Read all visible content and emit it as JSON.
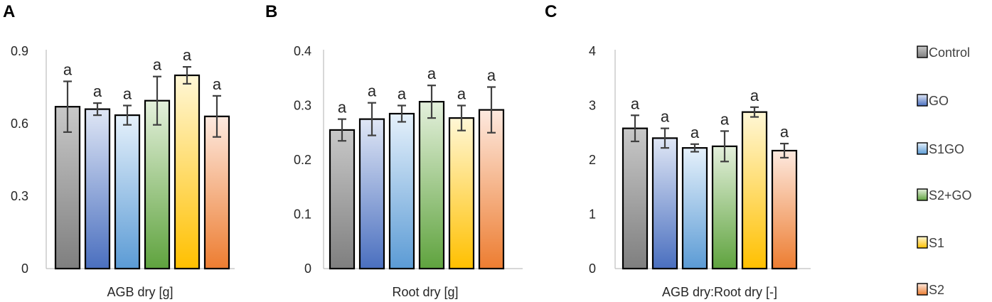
{
  "legend": [
    {
      "name": "Control",
      "top": "#c8c8c8",
      "bottom": "#7f7f7f"
    },
    {
      "name": "GO",
      "top": "#dfe6f5",
      "bottom": "#4a6fbf"
    },
    {
      "name": "S1GO",
      "top": "#e6f1fb",
      "bottom": "#5b9bd5"
    },
    {
      "name": "S2+GO",
      "top": "#e4f0dc",
      "bottom": "#5fa33e"
    },
    {
      "name": "S1",
      "top": "#fff7d6",
      "bottom": "#ffc000"
    },
    {
      "name": "S2",
      "top": "#fde9df",
      "bottom": "#ed7d31"
    }
  ],
  "chart_data": [
    {
      "panel": "A",
      "type": "bar",
      "xlabel": "AGB dry [g]",
      "ylim": [
        0,
        0.9
      ],
      "yticks": [
        "0",
        "0.3",
        "0.6",
        "0.9"
      ],
      "ytick_values": [
        0,
        0.3,
        0.6,
        0.9
      ],
      "categories": [
        "Control",
        "GO",
        "S1GO",
        "S2+GO",
        "S1",
        "S2"
      ],
      "values": [
        0.67,
        0.66,
        0.635,
        0.695,
        0.8,
        0.63
      ],
      "errors": [
        0.105,
        0.025,
        0.04,
        0.1,
        0.035,
        0.085
      ],
      "significance": [
        "a",
        "a",
        "a",
        "a",
        "a",
        "a"
      ]
    },
    {
      "panel": "B",
      "type": "bar",
      "xlabel": "Root dry [g]",
      "ylim": [
        0,
        0.4
      ],
      "yticks": [
        "0",
        "0.1",
        "0.2",
        "0.3",
        "0.4"
      ],
      "ytick_values": [
        0,
        0.1,
        0.2,
        0.3,
        0.4
      ],
      "categories": [
        "Control",
        "GO",
        "S1GO",
        "S2+GO",
        "S1",
        "S2"
      ],
      "values": [
        0.255,
        0.275,
        0.285,
        0.307,
        0.277,
        0.292
      ],
      "errors": [
        0.02,
        0.03,
        0.015,
        0.03,
        0.023,
        0.042
      ],
      "significance": [
        "a",
        "a",
        "a",
        "a",
        "a",
        "a"
      ]
    },
    {
      "panel": "C",
      "type": "bar",
      "xlabel": "AGB dry:Root dry [-]",
      "ylim": [
        0,
        4
      ],
      "yticks": [
        "0",
        "1",
        "2",
        "3",
        "4"
      ],
      "ytick_values": [
        0,
        1,
        2,
        3,
        4
      ],
      "categories": [
        "Control",
        "GO",
        "S1GO",
        "S2+GO",
        "S1",
        "S2"
      ],
      "values": [
        2.58,
        2.4,
        2.22,
        2.25,
        2.88,
        2.17
      ],
      "errors": [
        0.24,
        0.18,
        0.07,
        0.28,
        0.09,
        0.13
      ],
      "significance": [
        "a",
        "a",
        "a",
        "a",
        "a",
        "a"
      ]
    }
  ]
}
